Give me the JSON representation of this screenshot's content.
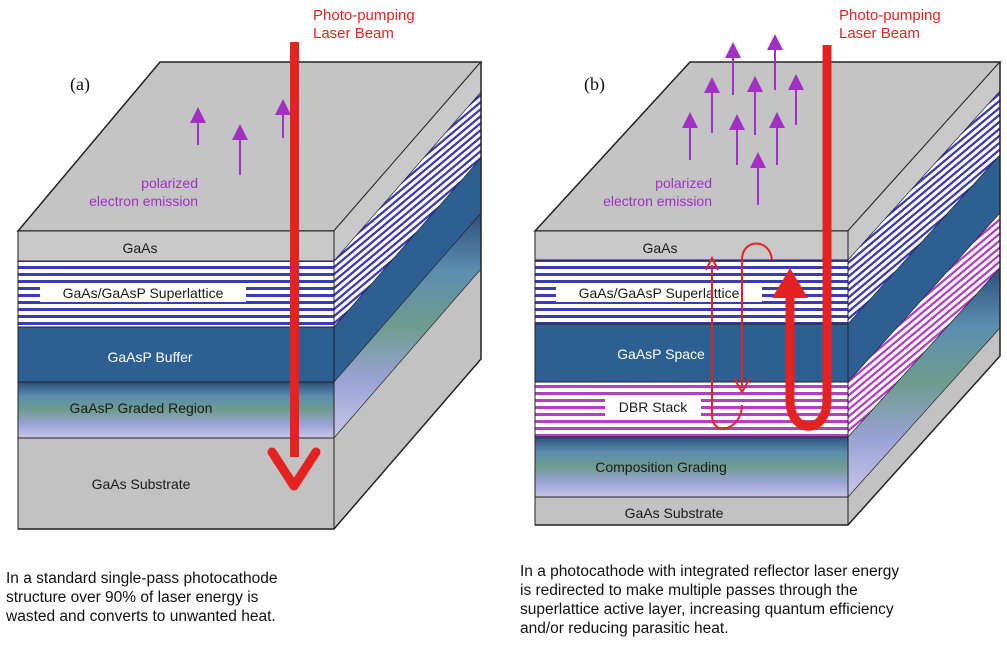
{
  "panel_a": {
    "label": "(a)",
    "laser_line1": "Photo-pumping",
    "laser_line2": "Laser Beam",
    "emission_line1": "polarized",
    "emission_line2": "electron emission",
    "layers": {
      "gaas": "GaAs",
      "superlattice": "GaAs/GaAsP Superlattice",
      "buffer": "GaAsP Buffer",
      "graded": "GaAsP Graded Region",
      "substrate": "GaAs Substrate"
    },
    "caption": [
      "In a standard single-pass photocathode",
      "structure over 90% of laser energy is",
      "wasted and converts to unwanted heat."
    ]
  },
  "panel_b": {
    "label": "(b)",
    "laser_line1": "Photo-pumping",
    "laser_line2": "Laser Beam",
    "emission_line1": "polarized",
    "emission_line2": "electron emission",
    "layers": {
      "gaas": "GaAs",
      "superlattice": "GaAs/GaAsP Superlattice",
      "space": "GaAsP Space",
      "dbr": "DBR Stack",
      "grading": "Composition Grading",
      "substrate": "GaAs Substrate"
    },
    "caption": [
      "In a photocathode with integrated reflector laser energy",
      "is redirected to make multiple passes through the",
      "superlattice active layer, increasing quantum efficiency",
      "and/or reducing parasitic heat."
    ]
  },
  "colors": {
    "top_face": "#c4c4c4",
    "gaas": "#c9c9c9",
    "buffer": "#2d5f93",
    "graded": "#4d7b9a",
    "substrate": "#c2c2c2",
    "superlattice_stripe": "#3b3bb8",
    "dbr_stripe": "#b23fc4",
    "laser": "#e52222",
    "emission": "#a230c4"
  }
}
